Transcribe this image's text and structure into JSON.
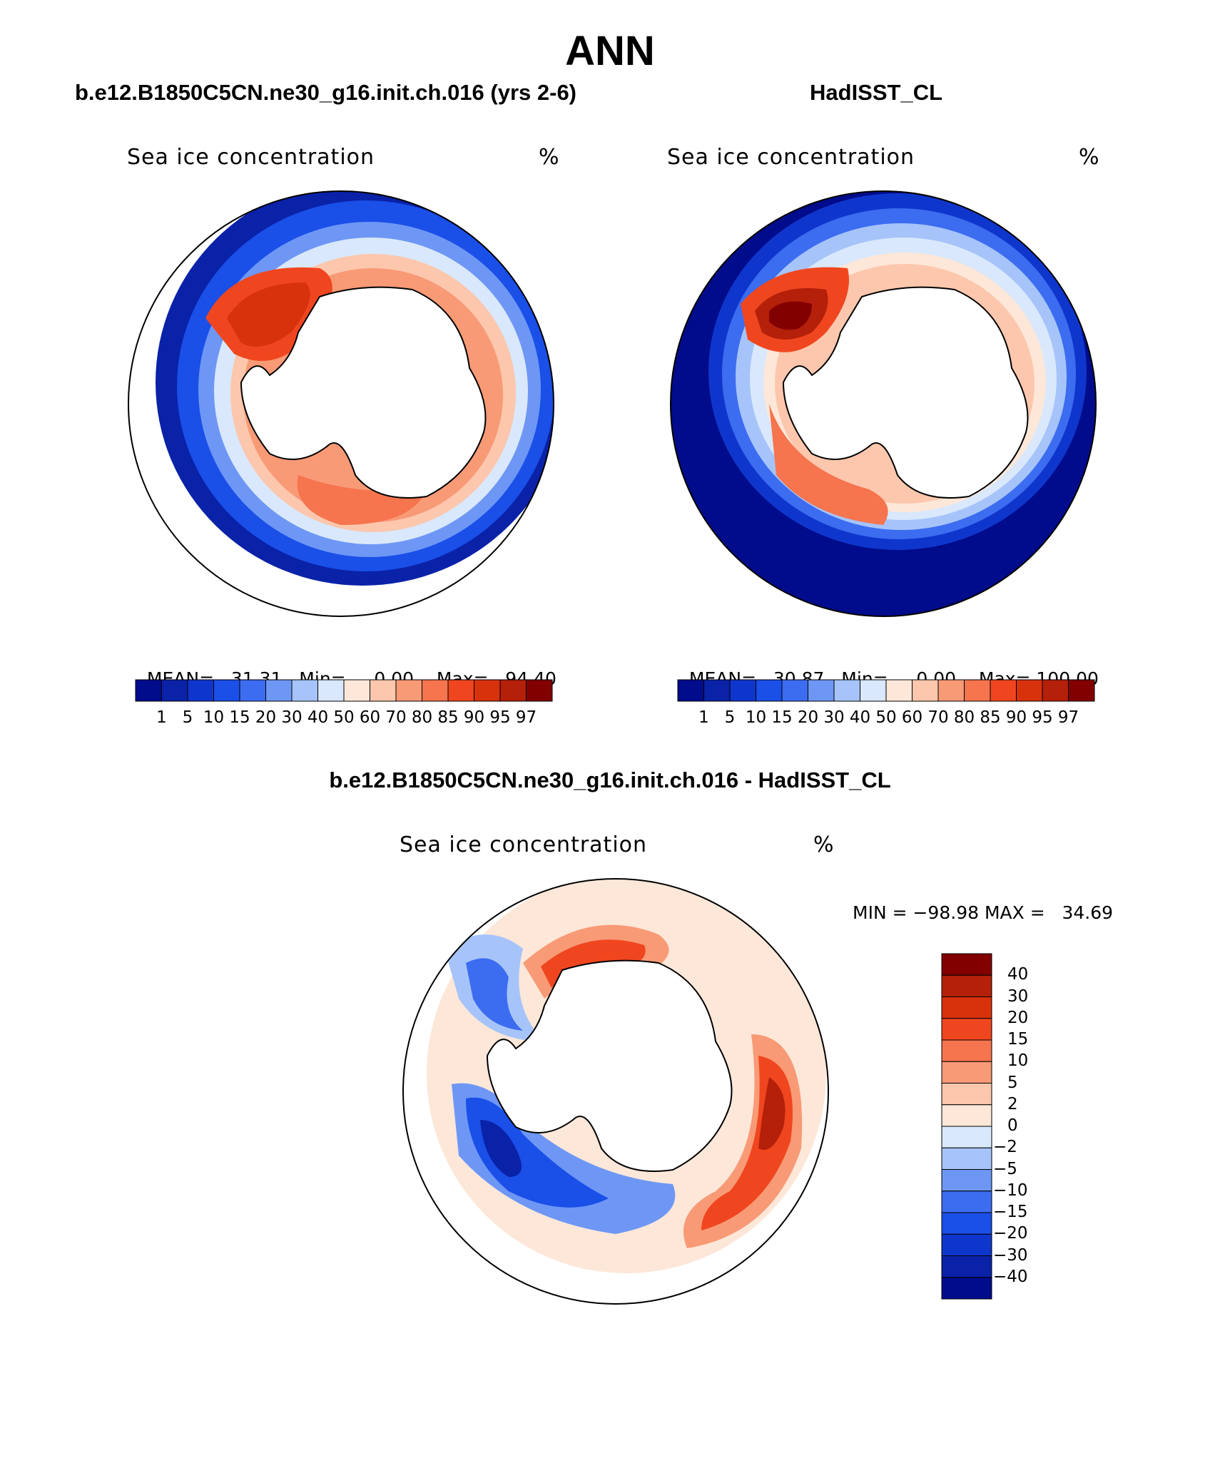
{
  "title": "ANN",
  "panels": [
    {
      "case_title": "b.e12.B1850C5CN.ne30_g16.init.ch.016 (yrs 2-6)",
      "variable": "Sea ice concentration",
      "units": "%",
      "stats": {
        "mean_label": "MEAN=",
        "mean": "31.31",
        "min_label": "Min=",
        "min": "0.00",
        "max_label": "Max=",
        "max": "94.40"
      }
    },
    {
      "case_title": "HadISST_CL",
      "variable": "Sea ice concentration",
      "units": "%",
      "stats": {
        "mean_label": "MEAN=",
        "mean": "30.87",
        "min_label": "Min=",
        "min": "0.00",
        "max_label": "Max=",
        "max": "100.00"
      }
    }
  ],
  "diff_panel": {
    "case_title": "b.e12.B1850C5CN.ne30_g16.init.ch.016 - HadISST_CL",
    "variable": "Sea ice concentration",
    "units": "%",
    "minmax": "MIN = −98.98 MAX =   34.69"
  },
  "colorbar_levels": [
    "1",
    "5",
    "10",
    "15",
    "20",
    "30",
    "40",
    "50",
    "60",
    "70",
    "80",
    "85",
    "90",
    "95",
    "97"
  ],
  "colorbar_colors": [
    "#000c8b",
    "#0a22a8",
    "#0f36cc",
    "#1a4fe8",
    "#3c6cf0",
    "#6e97f5",
    "#a6c4fa",
    "#d9e8fc",
    "#fde7d9",
    "#fcc7ad",
    "#f89a76",
    "#f6744e",
    "#f0461f",
    "#d8320d",
    "#b4200a",
    "#830000"
  ],
  "diff_levels": [
    "40",
    "30",
    "20",
    "15",
    "10",
    "5",
    "2",
    "0",
    "−2",
    "−5",
    "−10",
    "−15",
    "−20",
    "−30",
    "−40"
  ],
  "diff_colors": [
    "#830000",
    "#b4200a",
    "#d8320d",
    "#f0461f",
    "#f6744e",
    "#f89a76",
    "#fcc7ad",
    "#fde7d9",
    "#d9e8fc",
    "#a6c4fa",
    "#6e97f5",
    "#3c6cf0",
    "#1a4fe8",
    "#0f36cc",
    "#0a22a8",
    "#000c8b"
  ]
}
